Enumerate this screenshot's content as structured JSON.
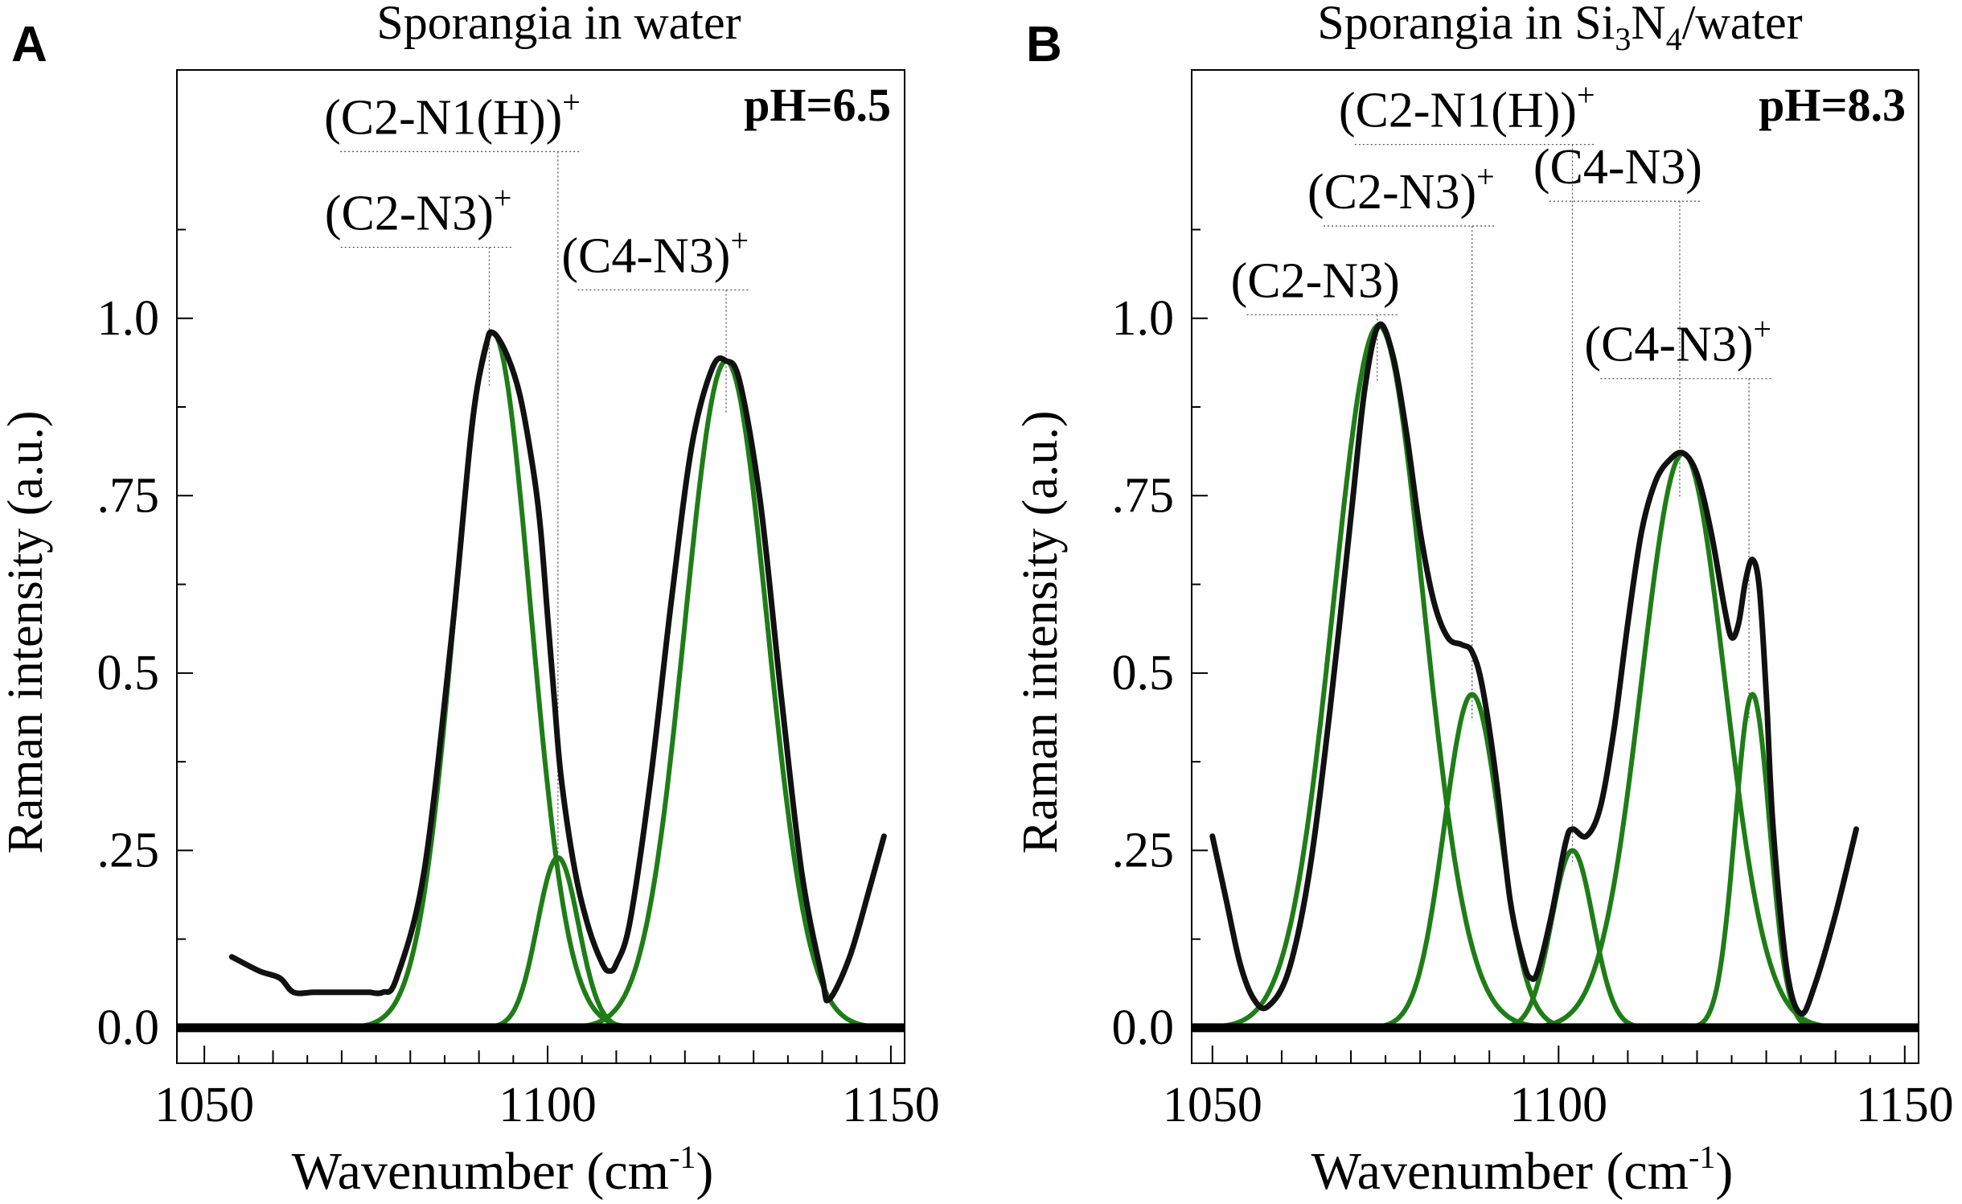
{
  "chart_data": [
    {
      "type": "line",
      "panel_label": "A",
      "title": "Sporangia in water",
      "ph_label": "pH=6.5",
      "xlabel": "Wavenumber (cm",
      "xlabel_sup": "-1",
      "xlabel_close": ")",
      "ylabel": "Raman intensity (a.u.)",
      "xlim": [
        1046,
        1152
      ],
      "ylim": [
        -0.05,
        1.35
      ],
      "x_ticks": [
        1050,
        1100,
        1150
      ],
      "x_tick_labels": [
        "1050",
        "1100",
        "1150"
      ],
      "y_ticks": [
        0,
        0.25,
        0.5,
        0.75,
        1.0
      ],
      "y_tick_labels": [
        "0.0",
        ".25",
        "0.5",
        ".75",
        "1.0"
      ],
      "colors": {
        "spectrum": "#111111",
        "component": "#1e7d16",
        "baseline": "#000000"
      },
      "components": [
        {
          "name": "(C2-N3)+",
          "center": 1092,
          "amplitude": 0.98,
          "sigma": 5.5
        },
        {
          "name": "(C2-N1(H))+",
          "center": 1101.5,
          "amplitude": 0.24,
          "sigma": 3.0
        },
        {
          "name": "(C4-N3)+",
          "center": 1126,
          "amplitude": 0.94,
          "sigma": 6.0
        }
      ],
      "spectrum": {
        "x": [
          1054,
          1058,
          1061,
          1063,
          1066,
          1070,
          1073,
          1074,
          1076,
          1078,
          1082,
          1086,
          1089,
          1091,
          1092,
          1094,
          1096,
          1098,
          1099,
          1100,
          1101,
          1102,
          1104,
          1106,
          1108,
          1109,
          1110,
          1112,
          1115,
          1118,
          1121,
          1124,
          1126,
          1128,
          1131,
          1134,
          1137,
          1140,
          1141,
          1144,
          1147,
          1149
        ],
        "y": [
          0.1,
          0.08,
          0.07,
          0.05,
          0.05,
          0.05,
          0.05,
          0.05,
          0.05,
          0.07,
          0.22,
          0.55,
          0.85,
          0.96,
          0.98,
          0.95,
          0.89,
          0.78,
          0.7,
          0.58,
          0.46,
          0.35,
          0.22,
          0.14,
          0.09,
          0.08,
          0.09,
          0.15,
          0.35,
          0.6,
          0.82,
          0.93,
          0.94,
          0.91,
          0.74,
          0.47,
          0.22,
          0.07,
          0.04,
          0.1,
          0.2,
          0.27
        ]
      },
      "annotations": [
        {
          "label": "(C2-N3)",
          "sup": "+",
          "x": 1091.5,
          "y_top": 1.1
        },
        {
          "label": "(C2-N1(H))",
          "sup": "+",
          "x": 1101.5,
          "y_top": 1.235
        },
        {
          "label": "(C4-N3)",
          "sup": "+",
          "x": 1126,
          "y_top": 1.04
        }
      ]
    },
    {
      "type": "line",
      "panel_label": "B",
      "title_prefix": "Sporangia in Si",
      "title_sub1": "3",
      "title_mid": "N",
      "title_sub2": "4",
      "title_suffix": "/water",
      "ph_label": "pH=8.3",
      "xlabel": "Wavenumber (cm",
      "xlabel_sup": "-1",
      "xlabel_close": ")",
      "ylabel": "Raman intensity (a.u.)",
      "xlim": [
        1047,
        1152
      ],
      "ylim": [
        -0.05,
        1.35
      ],
      "x_ticks": [
        1050,
        1100,
        1150
      ],
      "x_tick_labels": [
        "1050",
        "1100",
        "1150"
      ],
      "y_ticks": [
        0,
        0.25,
        0.5,
        0.75,
        1.0
      ],
      "y_tick_labels": [
        "0.0",
        ".25",
        "0.5",
        ".75",
        "1.0"
      ],
      "colors": {
        "spectrum": "#111111",
        "component": "#1e7d16",
        "baseline": "#000000"
      },
      "components": [
        {
          "name": "(C2-N3)",
          "center": 1074,
          "amplitude": 0.99,
          "sigma": 6.5
        },
        {
          "name": "(C2-N3)+",
          "center": 1087.5,
          "amplitude": 0.47,
          "sigma": 4.0
        },
        {
          "name": "(C2-N1(H))+",
          "center": 1102,
          "amplitude": 0.25,
          "sigma": 3.0
        },
        {
          "name": "(C4-N3)",
          "center": 1118,
          "amplitude": 0.81,
          "sigma": 6.0
        },
        {
          "name": "(C4-N3)+",
          "center": 1128,
          "amplitude": 0.47,
          "sigma": 2.5
        }
      ],
      "spectrum": {
        "x": [
          1050,
          1052,
          1054,
          1056,
          1058,
          1061,
          1064,
          1067,
          1070,
          1072,
          1074,
          1076,
          1078,
          1080,
          1082,
          1084,
          1086,
          1087.5,
          1089,
          1091,
          1093,
          1095,
          1096,
          1097,
          1099,
          1101,
          1102,
          1104,
          1106,
          1108,
          1110,
          1112,
          1114,
          1116,
          1118,
          1120,
          1122,
          1124,
          1125,
          1126,
          1127,
          1128,
          1129,
          1130,
          1131,
          1133,
          1135,
          1137,
          1140,
          1143
        ],
        "y": [
          0.27,
          0.18,
          0.09,
          0.04,
          0.03,
          0.08,
          0.22,
          0.45,
          0.72,
          0.9,
          0.99,
          0.95,
          0.84,
          0.7,
          0.6,
          0.55,
          0.54,
          0.53,
          0.48,
          0.35,
          0.18,
          0.09,
          0.07,
          0.08,
          0.16,
          0.26,
          0.28,
          0.27,
          0.31,
          0.42,
          0.57,
          0.7,
          0.77,
          0.8,
          0.81,
          0.78,
          0.7,
          0.59,
          0.55,
          0.57,
          0.63,
          0.66,
          0.62,
          0.47,
          0.28,
          0.08,
          0.02,
          0.06,
          0.16,
          0.28
        ]
      },
      "annotations": [
        {
          "label": "(C2-N3)",
          "sup": "",
          "x": 1073.8,
          "y_top": 1.005
        },
        {
          "label": "(C2-N3)",
          "sup": "+",
          "x": 1087.5,
          "y_top": 1.13
        },
        {
          "label": "(C2-N1(H))",
          "sup": "+",
          "x": 1102,
          "y_top": 1.245
        },
        {
          "label": "(C4-N3)",
          "sup": "",
          "x": 1117.5,
          "y_top": 1.165
        },
        {
          "label": "(C4-N3)",
          "sup": "+",
          "x": 1127.5,
          "y_top": 0.915
        }
      ]
    }
  ]
}
